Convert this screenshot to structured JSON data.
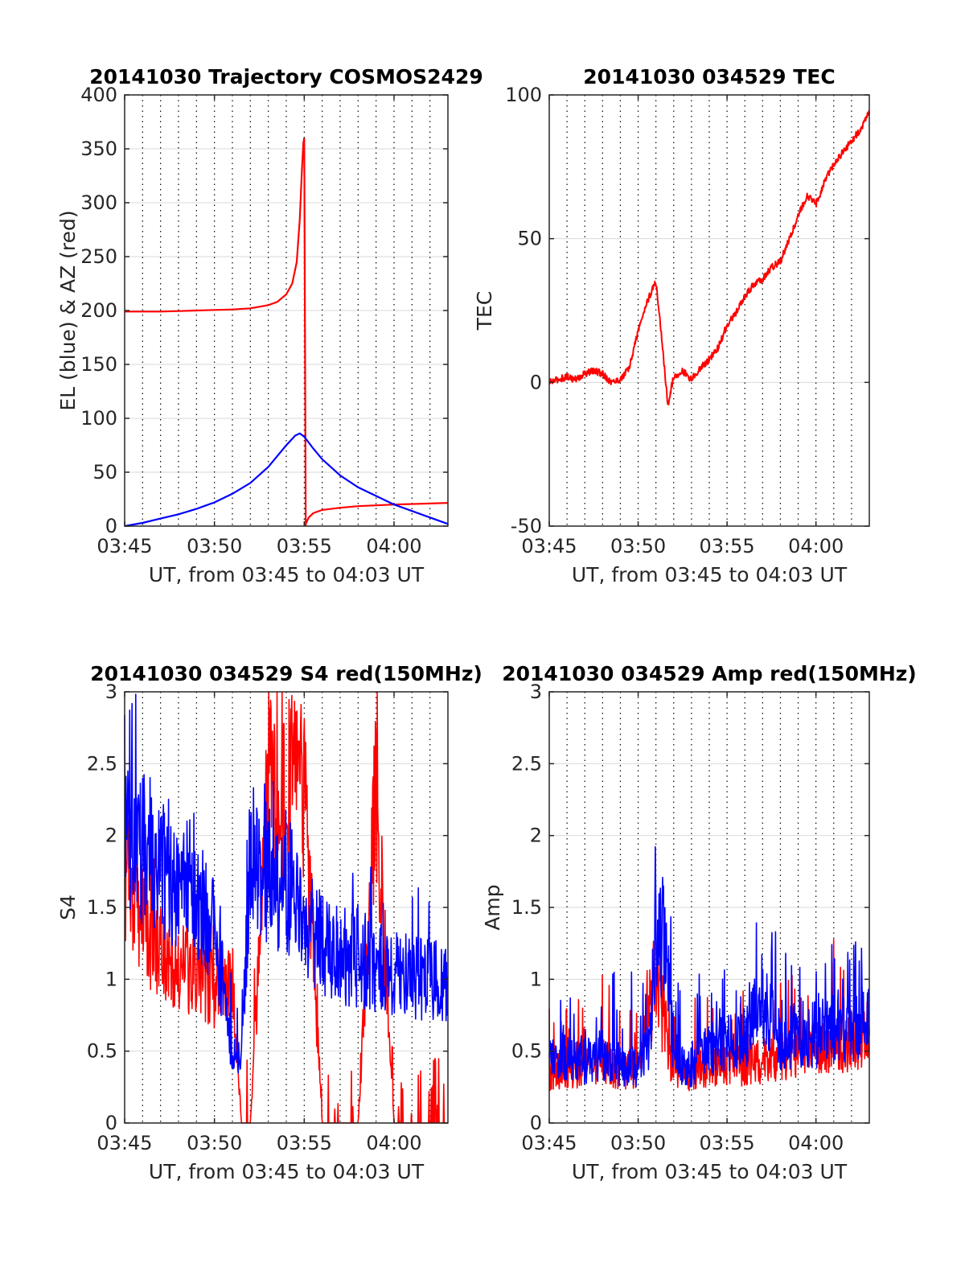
{
  "figure": {
    "background": "#ffffff",
    "grid_major_color": "#d9d9d9",
    "grid_minor_color": "#000000",
    "axis_color": "#262626"
  },
  "chart_data": [
    {
      "type": "line",
      "title": "20141030 Trajectory COSMOS2429",
      "xlabel": "UT, from 03:45 to 04:03 UT",
      "ylabel": "EL (blue) & AZ (red)",
      "x_unit": "time UT",
      "xlim": [
        "03:45",
        "04:03"
      ],
      "xticks": [
        "03:45",
        "03:50",
        "03:55",
        "04:00"
      ],
      "ylim": [
        0,
        400
      ],
      "yticks": [
        "0",
        "50",
        "100",
        "150",
        "200",
        "250",
        "300",
        "350",
        "400"
      ],
      "grid": "major solid horizontal, minor dotted vertical every 1 min",
      "series": [
        {
          "color": "#ff0000",
          "x": [
            "03:45:00",
            "03:46:00",
            "03:47:00",
            "03:48:00",
            "03:49:00",
            "03:50:00",
            "03:51:00",
            "03:52:00",
            "03:53:00",
            "03:53:30",
            "03:54:00",
            "03:54:20",
            "03:54:35",
            "03:54:45",
            "03:54:52",
            "03:54:57",
            "03:55:00",
            "03:55:05",
            "03:55:15",
            "03:55:30",
            "03:56:00",
            "03:57:00",
            "03:58:00",
            "04:00:00",
            "04:02:00",
            "04:03:00"
          ],
          "values": [
            199,
            199,
            199,
            199.5,
            200,
            200.5,
            201,
            202,
            205,
            208,
            215,
            225,
            245,
            285,
            330,
            355,
            360,
            2,
            8,
            12,
            15,
            17,
            18.5,
            20,
            21,
            21.5
          ]
        },
        {
          "color": "#0000ff",
          "x": [
            "03:45:00",
            "03:46:00",
            "03:47:00",
            "03:48:00",
            "03:49:00",
            "03:50:00",
            "03:51:00",
            "03:52:00",
            "03:53:00",
            "03:53:30",
            "03:54:00",
            "03:54:30",
            "03:54:45",
            "03:55:00",
            "03:55:30",
            "03:56:00",
            "03:57:00",
            "03:58:00",
            "03:59:00",
            "04:00:00",
            "04:01:00",
            "04:02:00",
            "04:03:00"
          ],
          "values": [
            0,
            3,
            7,
            11,
            16,
            22,
            30,
            40,
            55,
            65,
            75,
            84,
            86,
            83,
            72,
            62,
            47,
            36,
            28,
            20,
            14,
            8,
            2
          ]
        }
      ]
    },
    {
      "type": "line",
      "title": "20141030 034529 TEC",
      "xlabel": "UT, from 03:45 to 04:03 UT",
      "ylabel": "TEC",
      "x_unit": "time UT",
      "xlim": [
        "03:45",
        "04:03"
      ],
      "xticks": [
        "03:45",
        "03:50",
        "03:55",
        "04:00"
      ],
      "ylim": [
        -50,
        100
      ],
      "yticks": [
        "-50",
        "0",
        "50",
        "100"
      ],
      "grid": "major solid horizontal, minor dotted vertical every 1 min",
      "series": [
        {
          "color": "#ff0000",
          "x": [
            "03:45:00",
            "03:45:30",
            "03:46:00",
            "03:46:30",
            "03:47:00",
            "03:47:30",
            "03:48:00",
            "03:48:30",
            "03:49:00",
            "03:49:30",
            "03:50:00",
            "03:50:30",
            "03:51:00",
            "03:51:20",
            "03:51:40",
            "03:52:00",
            "03:52:30",
            "03:53:00",
            "03:53:30",
            "03:54:00",
            "03:54:30",
            "03:55:00",
            "03:55:30",
            "03:56:00",
            "03:56:30",
            "03:57:00",
            "03:57:30",
            "03:58:00",
            "03:58:30",
            "03:59:00",
            "03:59:30",
            "04:00:00",
            "04:00:30",
            "04:01:00",
            "04:01:30",
            "04:02:00",
            "04:02:30",
            "04:03:00"
          ],
          "values": [
            0,
            1,
            2,
            1,
            3,
            4,
            3,
            0,
            1,
            5,
            18,
            28,
            35,
            15,
            -8,
            2,
            4,
            1,
            5,
            8,
            12,
            20,
            24,
            30,
            34,
            36,
            40,
            42,
            50,
            58,
            65,
            62,
            70,
            76,
            80,
            84,
            88,
            94
          ]
        }
      ]
    },
    {
      "type": "line",
      "title": "20141030 034529 S4 red(150MHz)",
      "xlabel": "UT, from 03:45 to 04:03 UT",
      "ylabel": "S4",
      "x_unit": "time UT",
      "xlim": [
        "03:45",
        "04:03"
      ],
      "xticks": [
        "03:45",
        "03:50",
        "03:55",
        "04:00"
      ],
      "ylim": [
        0,
        3
      ],
      "yticks": [
        "0",
        "0.5",
        "1",
        "1.5",
        "2",
        "2.5",
        "3"
      ],
      "grid": "major solid horizontal, minor dotted vertical every 1 min",
      "series": [
        {
          "color": "#ff0000",
          "x": [
            "03:45:00",
            "03:46:00",
            "03:47:00",
            "03:48:00",
            "03:49:00",
            "03:50:00",
            "03:50:30",
            "03:51:00",
            "03:51:30",
            "03:52:00",
            "03:53:00",
            "03:54:00",
            "03:55:00",
            "03:56:00",
            "03:57:00",
            "03:58:00",
            "03:59:00",
            "04:00:00",
            "04:01:00",
            "04:02:00",
            "04:03:00"
          ],
          "values": [
            2.3,
            1.8,
            1.5,
            1.4,
            1.3,
            1.2,
            1.3,
            1.35,
            0,
            0,
            3,
            3,
            3,
            0,
            0,
            0,
            3,
            0,
            0,
            0,
            0
          ]
        },
        {
          "color": "#0000ff",
          "x": [
            "03:45:00",
            "03:46:00",
            "03:47:00",
            "03:48:00",
            "03:49:00",
            "03:50:00",
            "03:51:00",
            "03:51:30",
            "03:52:00",
            "03:53:00",
            "03:54:00",
            "03:55:00",
            "03:56:00",
            "03:57:00",
            "03:58:00",
            "03:59:00",
            "04:00:00",
            "04:01:00",
            "04:02:00",
            "04:03:00"
          ],
          "values": [
            2.7,
            2.5,
            2.3,
            2.2,
            2.0,
            1.8,
            0.6,
            0.55,
            2.5,
            2.2,
            2.0,
            1.8,
            1.6,
            1.5,
            1.45,
            1.4,
            1.35,
            1.3,
            1.3,
            1.25
          ]
        }
      ]
    },
    {
      "type": "line",
      "title": "20141030 034529 Amp red(150MHz)",
      "xlabel": "UT, from 03:45 to 04:03 UT",
      "ylabel": "Amp",
      "x_unit": "time UT",
      "xlim": [
        "03:45",
        "04:03"
      ],
      "xticks": [
        "03:45",
        "03:50",
        "03:55",
        "04:00"
      ],
      "ylim": [
        0,
        3
      ],
      "yticks": [
        "0",
        "0.5",
        "1",
        "1.5",
        "2",
        "2.5",
        "3"
      ],
      "grid": "major solid horizontal, minor dotted vertical every 1 min",
      "series": [
        {
          "color": "#ff0000",
          "x": [
            "03:45:00",
            "03:47:00",
            "03:48:00",
            "03:49:00",
            "03:50:00",
            "03:51:00",
            "03:52:00",
            "03:53:00",
            "03:55:00",
            "03:57:00",
            "03:59:00",
            "04:01:00",
            "04:03:00"
          ],
          "values": [
            0.5,
            0.55,
            0.6,
            0.5,
            0.5,
            1.4,
            0.5,
            0.5,
            0.55,
            0.6,
            0.65,
            0.75,
            0.85
          ]
        },
        {
          "color": "#0000ff",
          "x": [
            "03:45:00",
            "03:46:00",
            "03:47:00",
            "03:48:00",
            "03:49:00",
            "03:50:00",
            "03:50:40",
            "03:51:00",
            "03:51:20",
            "03:51:40",
            "03:52:00",
            "03:53:00",
            "03:54:00",
            "03:55:00",
            "03:56:00",
            "03:57:00",
            "03:58:00",
            "03:59:00",
            "04:00:00",
            "04:01:00",
            "04:02:00",
            "04:03:00"
          ],
          "values": [
            0.6,
            0.65,
            0.6,
            0.6,
            0.55,
            0.55,
            0.7,
            2.1,
            1.7,
            1.6,
            0.6,
            0.55,
            0.7,
            0.75,
            0.8,
            1.2,
            0.8,
            0.85,
            0.85,
            0.9,
            0.95,
            1.0
          ]
        }
      ]
    }
  ]
}
